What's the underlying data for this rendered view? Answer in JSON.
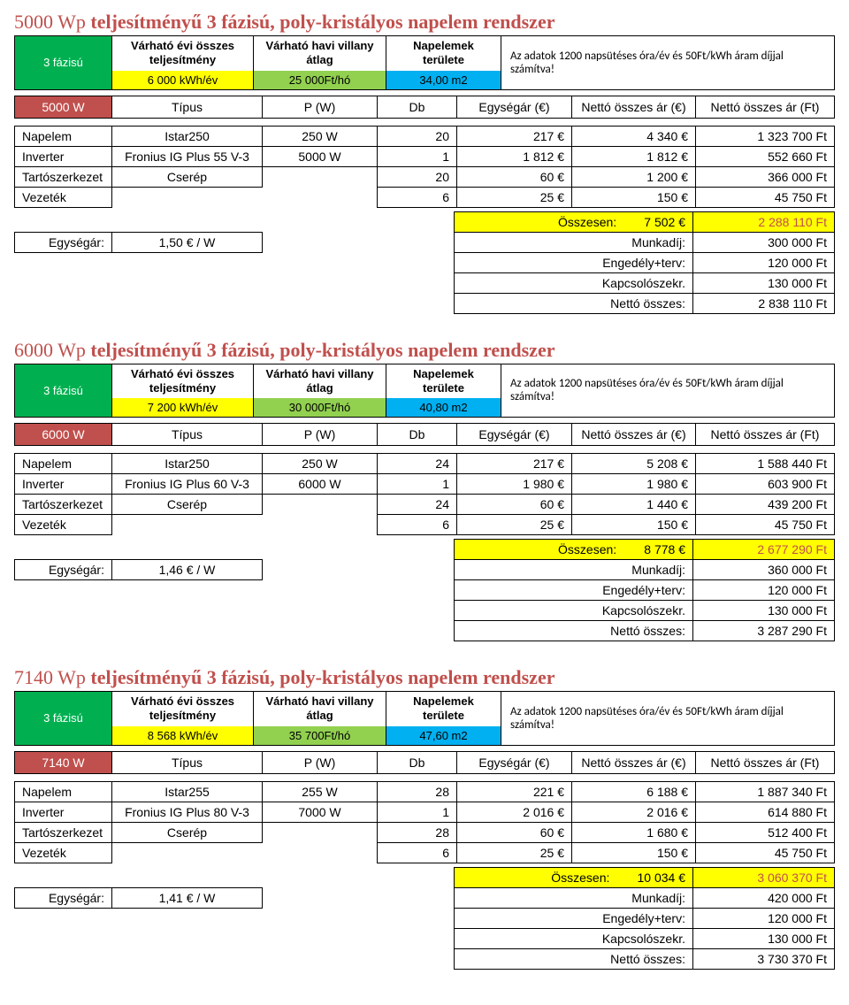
{
  "common": {
    "info_headers": {
      "kwh": "Várható évi összes teljesítmény",
      "ft": "Várható havi villany átlag",
      "m2": "Napelemek területe",
      "note": "Az adatok 1200 napsütéses óra/év és 50Ft/kWh áram díjjal számítva!"
    },
    "table_headers": {
      "type": "Típus",
      "pw": "P (W)",
      "db": "Db",
      "unitp": "Egységár (€)",
      "sume": "Nettó összes ár (€)",
      "sumft": "Nettó összes ár (Ft)"
    },
    "totals_labels": {
      "osszesen": "Összesen:",
      "munkadij": "Munkadíj:",
      "engedely": "Engedély+terv:",
      "kapcs": "Kapcsolószekr.",
      "netto": "Nettó összes:",
      "egysegar": "Egységár:"
    }
  },
  "sections": [
    {
      "title_wp": "5000 Wp",
      "title_rest": "teljesítményű 3 fázisú, poly-kristályos napelem rendszer",
      "phase": "3 fázisú",
      "kwh": "6 000 kWh/év",
      "ft": "25 000Ft/hó",
      "m2": "34,00 m2",
      "watt": "5000 W",
      "rows": [
        {
          "label": "Napelem",
          "t1": "Istar250",
          "t2": "250 W",
          "t3": "20",
          "t4": "217 €",
          "t5": "4 340 €",
          "t6": "1 323 700 Ft"
        },
        {
          "label": "Inverter",
          "t1": "Fronius IG Plus 55 V-3",
          "t2": "5000 W",
          "t3": "1",
          "t4": "1 812 €",
          "t5": "1 812 €",
          "t6": "552 660 Ft"
        },
        {
          "label": "Tartószerkezet",
          "t1": "Cserép",
          "t2": "",
          "t3": "20",
          "t4": "60 €",
          "t5": "1 200 €",
          "t6": "366 000 Ft"
        },
        {
          "label": "Vezeték",
          "t1": "",
          "t2": "",
          "t3": "6",
          "t4": "25 €",
          "t5": "150 €",
          "t6": "45 750 Ft"
        }
      ],
      "unit_price": "1,50 € / W",
      "totals": {
        "osszesen_e": "7 502 €",
        "osszesen_ft": "2 288 110 Ft",
        "munkadij": "300 000 Ft",
        "engedely": "120 000 Ft",
        "kapcs": "130 000 Ft",
        "netto": "2 838 110 Ft"
      }
    },
    {
      "title_wp": "6000 Wp",
      "title_rest": "teljesítményű 3 fázisú, poly-kristályos napelem rendszer",
      "phase": "3 fázisú",
      "kwh": "7 200 kWh/év",
      "ft": "30 000Ft/hó",
      "m2": "40,80 m2",
      "watt": "6000 W",
      "rows": [
        {
          "label": "Napelem",
          "t1": "Istar250",
          "t2": "250 W",
          "t3": "24",
          "t4": "217 €",
          "t5": "5 208 €",
          "t6": "1 588 440 Ft"
        },
        {
          "label": "Inverter",
          "t1": "Fronius IG Plus 60 V-3",
          "t2": "6000 W",
          "t3": "1",
          "t4": "1 980 €",
          "t5": "1 980 €",
          "t6": "603 900 Ft"
        },
        {
          "label": "Tartószerkezet",
          "t1": "Cserép",
          "t2": "",
          "t3": "24",
          "t4": "60 €",
          "t5": "1 440 €",
          "t6": "439 200 Ft"
        },
        {
          "label": "Vezeték",
          "t1": "",
          "t2": "",
          "t3": "6",
          "t4": "25 €",
          "t5": "150 €",
          "t6": "45 750 Ft"
        }
      ],
      "unit_price": "1,46 € / W",
      "totals": {
        "osszesen_e": "8 778 €",
        "osszesen_ft": "2 677 290 Ft",
        "munkadij": "360 000 Ft",
        "engedely": "120 000 Ft",
        "kapcs": "130 000 Ft",
        "netto": "3 287 290 Ft"
      }
    },
    {
      "title_wp": "7140 Wp",
      "title_rest": "teljesítményű 3 fázisú, poly-kristályos napelem rendszer",
      "phase": "3 fázisú",
      "kwh": "8 568 kWh/év",
      "ft": "35 700Ft/hó",
      "m2": "47,60 m2",
      "watt": "7140 W",
      "rows": [
        {
          "label": "Napelem",
          "t1": "Istar255",
          "t2": "255 W",
          "t3": "28",
          "t4": "221 €",
          "t5": "6 188 €",
          "t6": "1 887 340 Ft"
        },
        {
          "label": "Inverter",
          "t1": "Fronius IG Plus 80 V-3",
          "t2": "7000 W",
          "t3": "1",
          "t4": "2 016 €",
          "t5": "2 016 €",
          "t6": "614 880 Ft"
        },
        {
          "label": "Tartószerkezet",
          "t1": "Cserép",
          "t2": "",
          "t3": "28",
          "t4": "60 €",
          "t5": "1 680 €",
          "t6": "512 400 Ft"
        },
        {
          "label": "Vezeték",
          "t1": "",
          "t2": "",
          "t3": "6",
          "t4": "25 €",
          "t5": "150 €",
          "t6": "45 750 Ft"
        }
      ],
      "unit_price": "1,41 € / W",
      "totals": {
        "osszesen_e": "10 034 €",
        "osszesen_ft": "3 060 370 Ft",
        "munkadij": "420 000 Ft",
        "engedely": "120 000 Ft",
        "kapcs": "130 000 Ft",
        "netto": "3 730 370 Ft"
      }
    }
  ]
}
